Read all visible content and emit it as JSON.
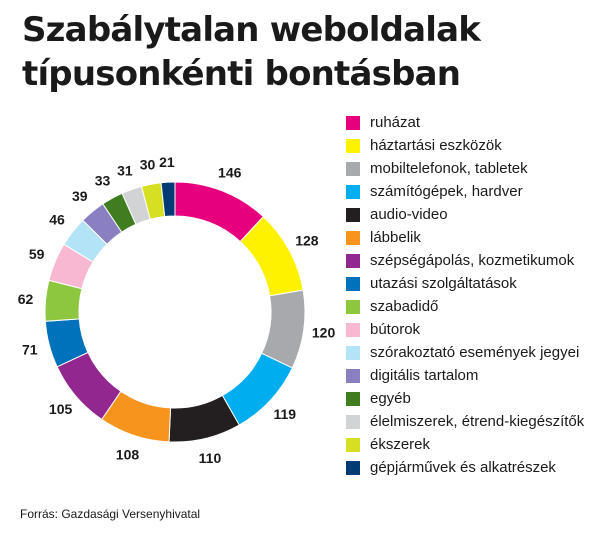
{
  "title": {
    "line1": "Szabálytalan weboldalak",
    "line2": "típusonkénti bontásban"
  },
  "source": "Forrás: Gazdasági Versenyhivatal",
  "chart_data": {
    "type": "pie",
    "title": "Szabálytalan weboldalak típusonkénti bontásban",
    "donut": true,
    "legend_position": "right",
    "categories": [
      "ruházat",
      "háztartási eszközök",
      "mobiltelefonok, tabletek",
      "számítógépek, hardver",
      "audio-video",
      "lábbelik",
      "szépségápolás, kozmetikumok",
      "utazási szolgáltatások",
      "szabadidő",
      "bútorok",
      "szórakoztató események jegyei",
      "digitális tartalom",
      "egyéb",
      "élelmiszerek, étrend-kiegészítők",
      "ékszerek",
      "gépjárművek és alkatrészek"
    ],
    "values": [
      146,
      128,
      120,
      119,
      110,
      108,
      105,
      71,
      62,
      59,
      46,
      39,
      33,
      31,
      30,
      21
    ],
    "colors": [
      "#e6007e",
      "#fff200",
      "#a7a9ac",
      "#00aeef",
      "#231f20",
      "#f7941d",
      "#92278f",
      "#0072bc",
      "#8dc63f",
      "#f9b8d2",
      "#b3e3f7",
      "#8a7fc0",
      "#3f7d20",
      "#d1d3d4",
      "#d7df23",
      "#003b73"
    ]
  }
}
